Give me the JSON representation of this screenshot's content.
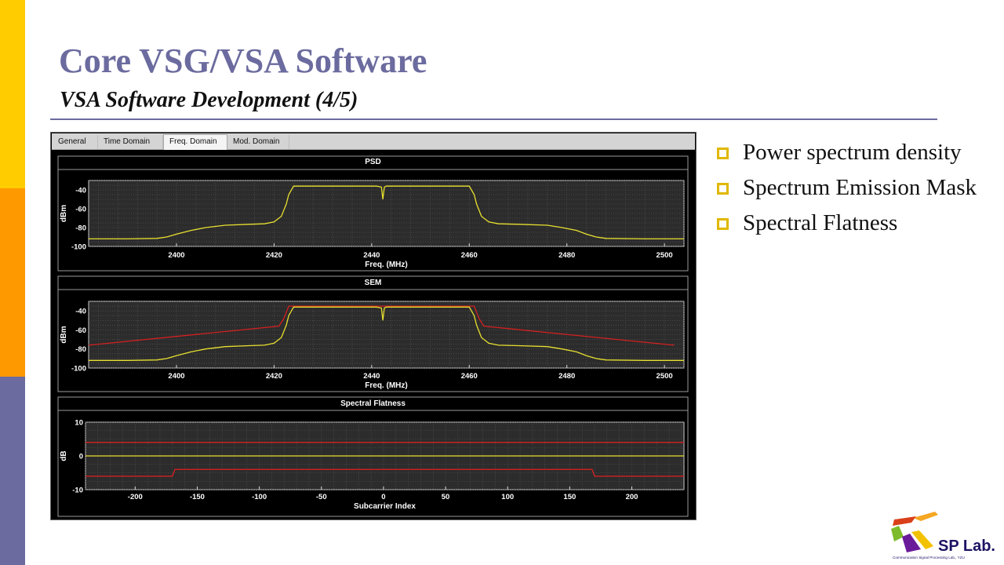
{
  "slide": {
    "title": "Core VSG/VSA Software",
    "subtitle": "VSA Software Development (4/5)",
    "accent_color": "#6b6b9f",
    "stripe_colors": [
      "#ffcc00",
      "#ff9900",
      "#6b6b9f"
    ]
  },
  "app": {
    "tabs": [
      "General",
      "Time Domain",
      "Freq. Domain",
      "Mod. Domain"
    ],
    "active_tab": "Freq. Domain"
  },
  "bullets": [
    "Power spectrum density",
    "Spectrum Emission Mask",
    "Spectral Flatness"
  ],
  "logo": {
    "text": "SP Lab.",
    "caption": "Communication Signal Processing Lab., YZU"
  },
  "chart_data": [
    {
      "type": "line",
      "title": "PSD",
      "xlabel": "Freq. (MHz)",
      "ylabel": "dBm",
      "xlim": [
        2382,
        2504
      ],
      "ylim": [
        -100,
        -30
      ],
      "xticks": [
        2400,
        2420,
        2440,
        2460,
        2480,
        2500
      ],
      "yticks": [
        -40,
        -60,
        -80,
        -100
      ],
      "grid": true,
      "series": [
        {
          "color": "#e8e030",
          "x": [
            2382,
            2390,
            2396,
            2398,
            2400,
            2403,
            2406,
            2410,
            2415,
            2418,
            2420,
            2421.5,
            2422.5,
            2423,
            2424,
            2441,
            2442,
            2442.3,
            2442.6,
            2443,
            2460,
            2461,
            2461.5,
            2462.5,
            2464,
            2466,
            2470,
            2476,
            2479,
            2482,
            2484,
            2486,
            2488,
            2496,
            2504
          ],
          "y": [
            -92,
            -92,
            -91.5,
            -90,
            -87,
            -83,
            -80,
            -77.5,
            -76.5,
            -76,
            -74,
            -68,
            -55,
            -45,
            -36,
            -36,
            -37,
            -50,
            -37,
            -36,
            -36,
            -45,
            -55,
            -68,
            -74,
            -76,
            -76.5,
            -77.5,
            -80,
            -83,
            -87,
            -90,
            -91.5,
            -92,
            -92
          ]
        }
      ]
    },
    {
      "type": "line",
      "title": "SEM",
      "xlabel": "Freq. (MHz)",
      "ylabel": "dBm",
      "xlim": [
        2382,
        2504
      ],
      "ylim": [
        -100,
        -30
      ],
      "xticks": [
        2400,
        2420,
        2440,
        2460,
        2480,
        2500
      ],
      "yticks": [
        -40,
        -60,
        -80,
        -100
      ],
      "grid": true,
      "series": [
        {
          "color": "#d42020",
          "x": [
            2382,
            2421,
            2422,
            2423,
            2461,
            2462,
            2463,
            2502
          ],
          "y": [
            -76,
            -56,
            -48,
            -35,
            -35,
            -48,
            -56,
            -76
          ]
        },
        {
          "color": "#e8e030",
          "x": [
            2382,
            2390,
            2396,
            2398,
            2400,
            2403,
            2406,
            2410,
            2415,
            2418,
            2420,
            2421.5,
            2422.5,
            2423,
            2424,
            2441,
            2442,
            2442.3,
            2442.6,
            2443,
            2460,
            2461,
            2461.5,
            2462.5,
            2464,
            2466,
            2470,
            2476,
            2479,
            2482,
            2484,
            2486,
            2488,
            2496,
            2504
          ],
          "y": [
            -92,
            -92,
            -91.5,
            -90,
            -87,
            -83,
            -80,
            -77.5,
            -76.5,
            -76,
            -74,
            -68,
            -55,
            -45,
            -36,
            -36,
            -37,
            -50,
            -37,
            -36,
            -36,
            -45,
            -55,
            -68,
            -74,
            -76,
            -76.5,
            -77.5,
            -80,
            -83,
            -87,
            -90,
            -91.5,
            -92,
            -92
          ]
        }
      ]
    },
    {
      "type": "line",
      "title": "Spectral Flatness",
      "xlabel": "Subcarrier Index",
      "ylabel": "dB",
      "xlim": [
        -240,
        242
      ],
      "ylim": [
        -10,
        10
      ],
      "xticks": [
        -200,
        -150,
        -100,
        -50,
        0,
        50,
        100,
        150,
        200
      ],
      "yticks": [
        10,
        0,
        -10
      ],
      "grid": true,
      "series": [
        {
          "color": "#d42020",
          "x": [
            -240,
            242
          ],
          "y": [
            4,
            4
          ]
        },
        {
          "color": "#d42020",
          "x": [
            -240,
            -170,
            -168,
            168,
            170,
            242
          ],
          "y": [
            -6,
            -6,
            -4,
            -4,
            -6,
            -6
          ]
        },
        {
          "color": "#e8e030",
          "x": [
            -240,
            242
          ],
          "y": [
            0,
            0
          ]
        }
      ]
    }
  ]
}
